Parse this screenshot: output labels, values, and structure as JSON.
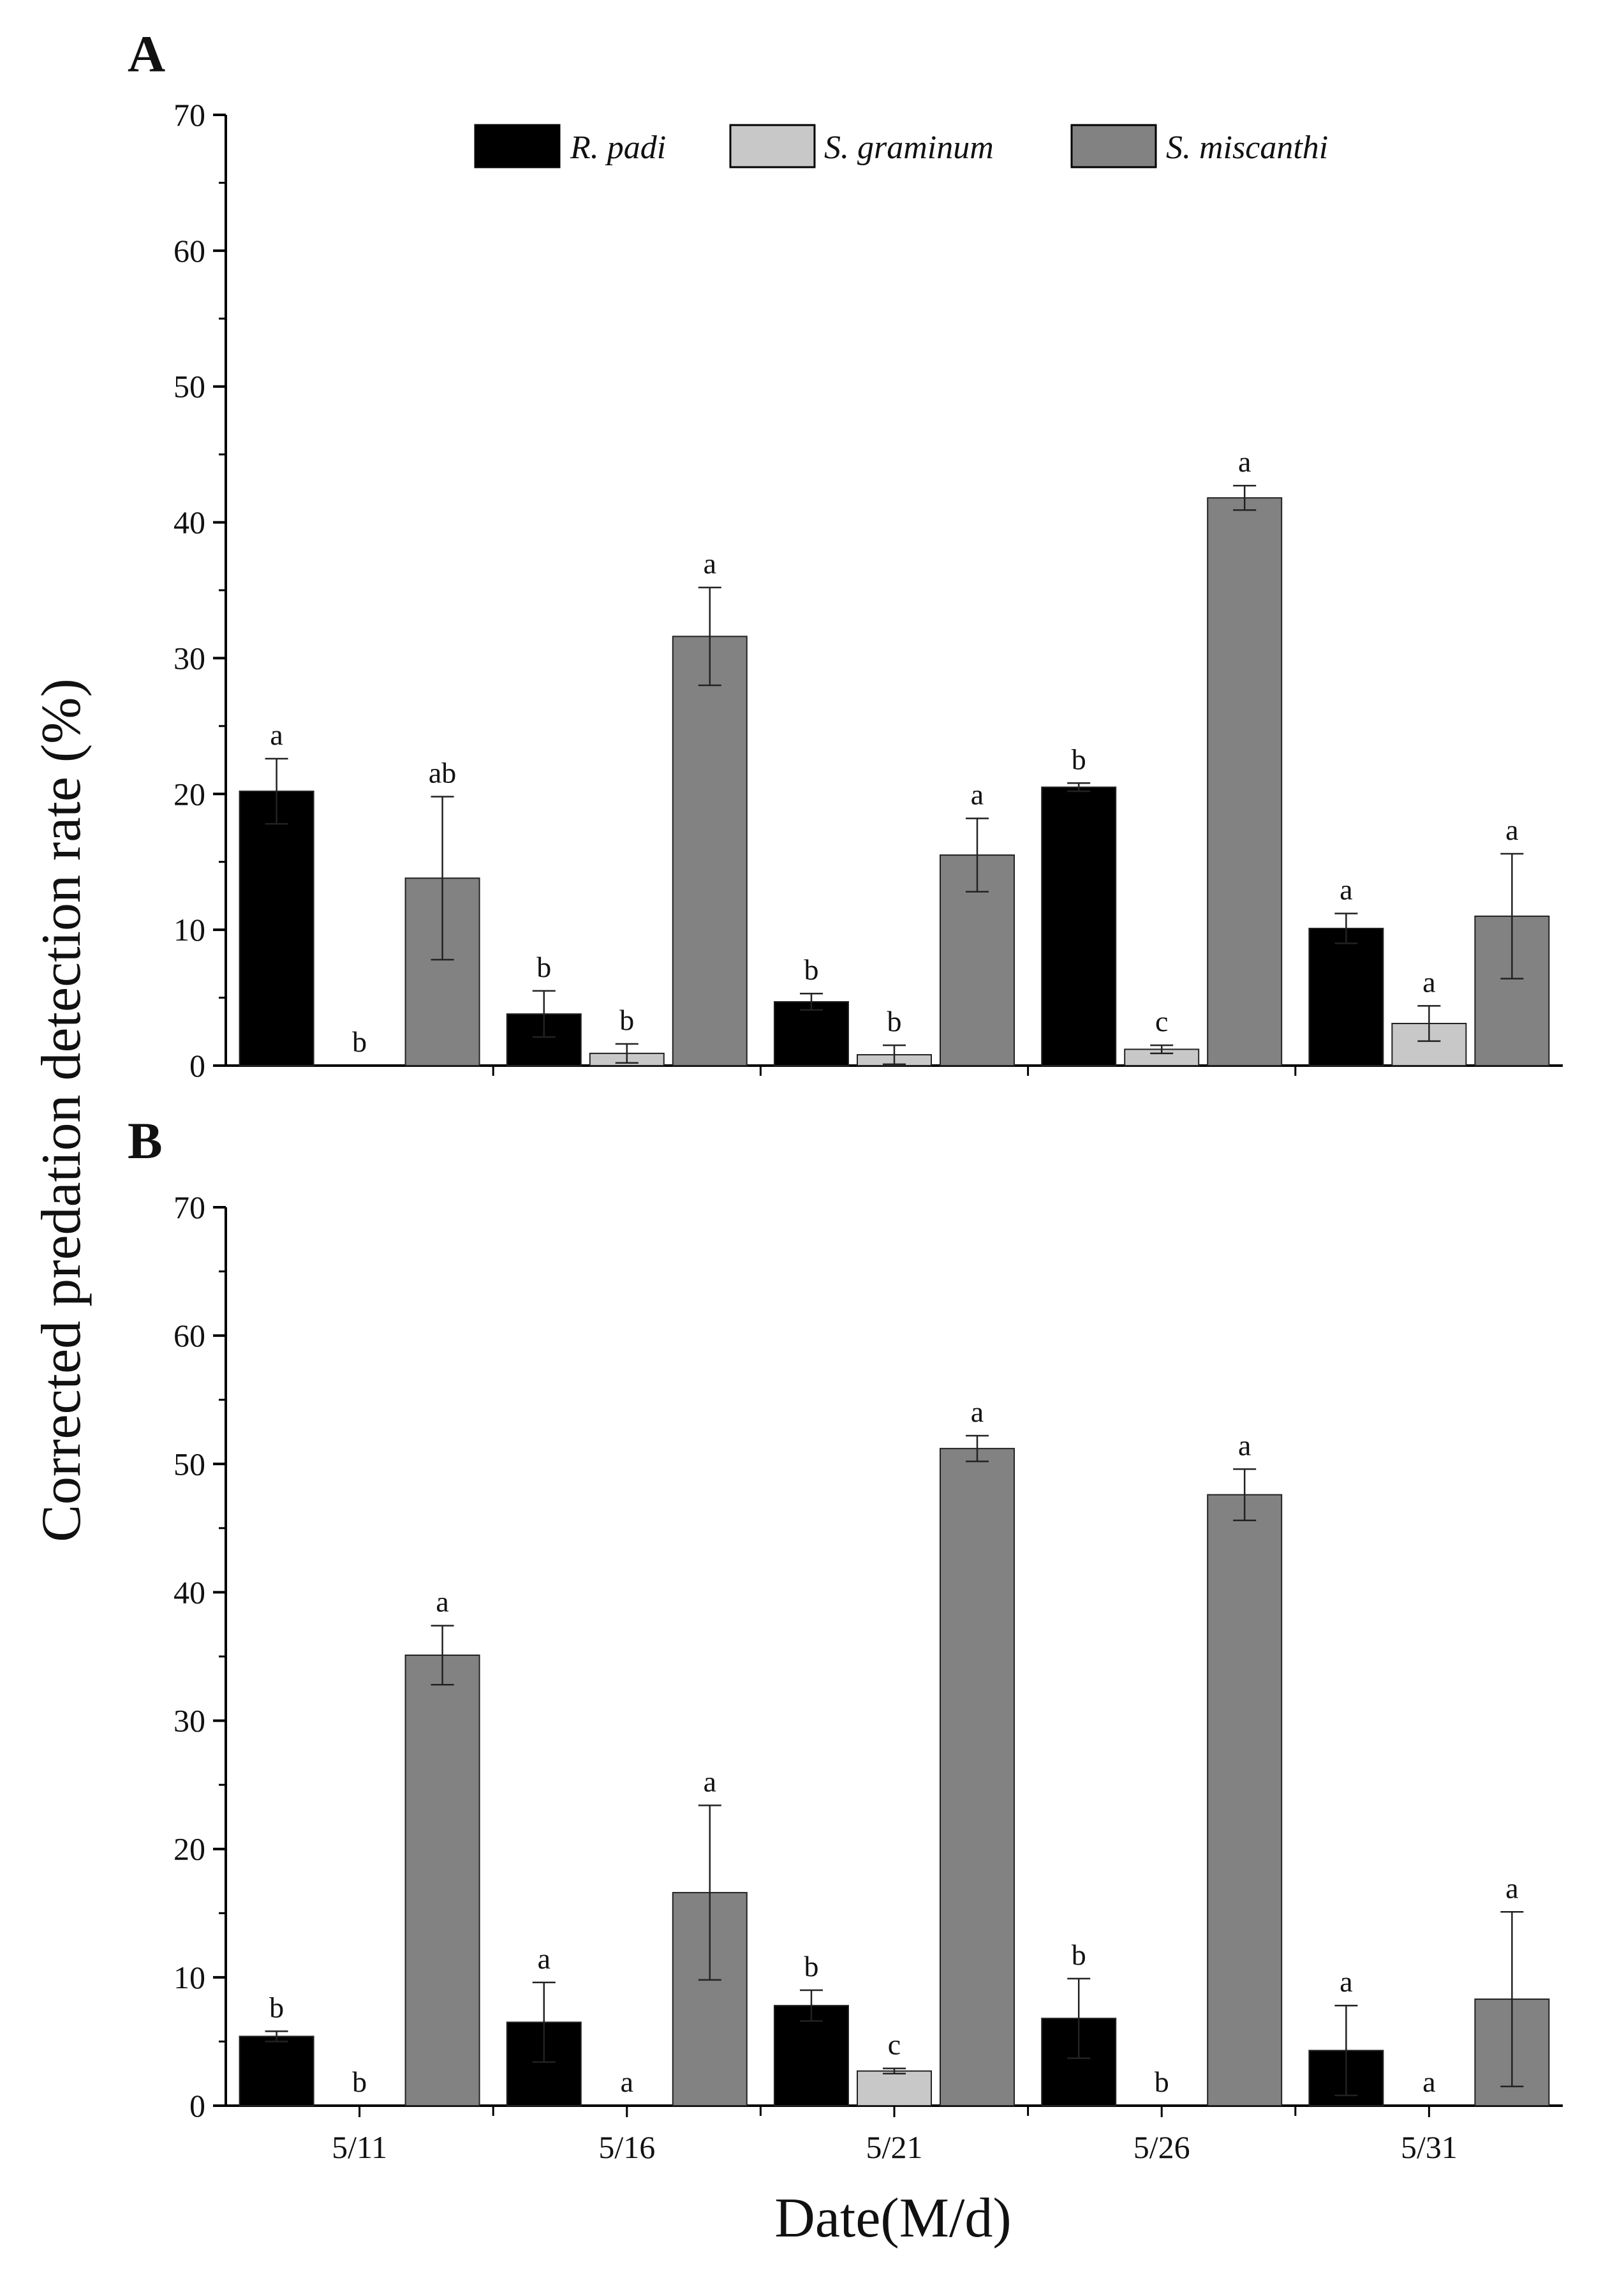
{
  "figure": {
    "ylabel": "Corrected predation detection rate (%)",
    "xlabel": "Date(M/d)"
  },
  "legend": [
    {
      "name": "R. padi",
      "color": "#000000"
    },
    {
      "name": "S. graminum",
      "color": "#c8c8c8"
    },
    {
      "name": "S. miscanthi",
      "color": "#828282"
    }
  ],
  "chart_data": [
    {
      "type": "bar",
      "panel": "A",
      "categories": [
        "5/11",
        "5/16",
        "5/21",
        "5/26",
        "5/31"
      ],
      "ylim": [
        0,
        70
      ],
      "yticks": [
        0,
        10,
        20,
        30,
        40,
        50,
        60,
        70
      ],
      "series": [
        {
          "name": "R. padi",
          "values": [
            20.2,
            3.8,
            4.7,
            20.5,
            10.1
          ],
          "errors": [
            2.4,
            1.7,
            0.6,
            0.3,
            1.1
          ],
          "letters": [
            "a",
            "b",
            "b",
            "b",
            "a"
          ]
        },
        {
          "name": "S. graminum",
          "values": [
            0.0,
            0.9,
            0.8,
            1.2,
            3.1
          ],
          "errors": [
            0.0,
            0.7,
            0.7,
            0.3,
            1.3
          ],
          "letters": [
            "b",
            "b",
            "b",
            "c",
            "a"
          ]
        },
        {
          "name": "S. miscanthi",
          "values": [
            13.8,
            31.6,
            15.5,
            41.8,
            11.0
          ],
          "errors": [
            6.0,
            3.6,
            2.7,
            0.9,
            4.6
          ],
          "letters": [
            "ab",
            "a",
            "a",
            "a",
            "a"
          ]
        }
      ]
    },
    {
      "type": "bar",
      "panel": "B",
      "categories": [
        "5/11",
        "5/16",
        "5/21",
        "5/26",
        "5/31"
      ],
      "ylim": [
        0,
        70
      ],
      "yticks": [
        0,
        10,
        20,
        30,
        40,
        50,
        60,
        70
      ],
      "series": [
        {
          "name": "R. padi",
          "values": [
            5.4,
            6.5,
            7.8,
            6.8,
            4.3
          ],
          "errors": [
            0.4,
            3.1,
            1.2,
            3.1,
            3.5
          ],
          "letters": [
            "b",
            "a",
            "b",
            "b",
            "a"
          ]
        },
        {
          "name": "S. graminum",
          "values": [
            0.0,
            0.0,
            2.7,
            0.0,
            0.0
          ],
          "errors": [
            0.0,
            0.0,
            0.2,
            0.0,
            0.0
          ],
          "letters": [
            "b",
            "a",
            "c",
            "b",
            "a"
          ]
        },
        {
          "name": "S. miscanthi",
          "values": [
            35.1,
            16.6,
            51.2,
            47.6,
            8.3
          ],
          "errors": [
            2.3,
            6.8,
            1.0,
            2.0,
            6.8
          ],
          "letters": [
            "a",
            "a",
            "a",
            "a",
            "a"
          ]
        }
      ]
    }
  ]
}
